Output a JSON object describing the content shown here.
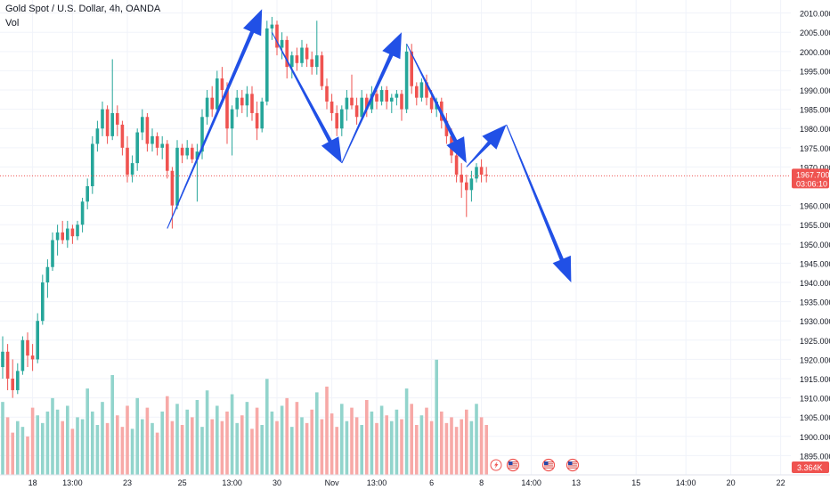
{
  "header": {
    "title": "Gold Spot / U.S. Dollar, 4h, OANDA",
    "volume_label": "Vol"
  },
  "price_axis": {
    "ticks": [
      "2010.000",
      "2005.000",
      "2000.000",
      "1995.000",
      "1990.000",
      "1985.000",
      "1980.000",
      "1975.000",
      "1970.000",
      "1960.000",
      "1955.000",
      "1950.000",
      "1945.000",
      "1940.000",
      "1935.000",
      "1930.000",
      "1925.000",
      "1920.000",
      "1915.000",
      "1910.000",
      "1905.000",
      "1900.000",
      "1895.000"
    ],
    "last_price": "1967.700",
    "countdown": "03:06:10",
    "volume_badge": "3.364K"
  },
  "time_axis": {
    "labels": [
      "18",
      "13:00",
      "23",
      "25",
      "13:00",
      "30",
      "Nov",
      "13:00",
      "6",
      "8",
      "14:00",
      "13",
      "15",
      "14:00",
      "20",
      "22"
    ]
  },
  "colors": {
    "up": "#26a69a",
    "down": "#ef5350",
    "vol_up": "#92d4cc",
    "vol_down": "#f7a9a7",
    "arrow": "#2150e6",
    "grid": "#f0f3fa",
    "axis_text": "#131722"
  },
  "events": {
    "icons": [
      "lightning-icon",
      "us-flag-icon",
      "us-flag-icon",
      "us-flag-icon"
    ]
  },
  "chart_data": {
    "type": "candlestick",
    "symbol": "Gold Spot / U.S. Dollar",
    "timeframe": "4h",
    "source": "OANDA",
    "y_range": [
      1890,
      2012
    ],
    "last_price": 1967.7,
    "candles": [
      {
        "o": 1918,
        "h": 1926,
        "l": 1915,
        "c": 1922
      },
      {
        "o": 1922,
        "h": 1924,
        "l": 1912,
        "c": 1915
      },
      {
        "o": 1915,
        "h": 1920,
        "l": 1910,
        "c": 1912
      },
      {
        "o": 1912,
        "h": 1919,
        "l": 1911,
        "c": 1917
      },
      {
        "o": 1917,
        "h": 1926,
        "l": 1916,
        "c": 1925
      },
      {
        "o": 1925,
        "h": 1927,
        "l": 1918,
        "c": 1921
      },
      {
        "o": 1921,
        "h": 1924,
        "l": 1917,
        "c": 1920
      },
      {
        "o": 1920,
        "h": 1932,
        "l": 1919,
        "c": 1930
      },
      {
        "o": 1930,
        "h": 1942,
        "l": 1929,
        "c": 1940
      },
      {
        "o": 1940,
        "h": 1946,
        "l": 1936,
        "c": 1944
      },
      {
        "o": 1944,
        "h": 1953,
        "l": 1943,
        "c": 1951
      },
      {
        "o": 1951,
        "h": 1955,
        "l": 1947,
        "c": 1953
      },
      {
        "o": 1953,
        "h": 1956,
        "l": 1950,
        "c": 1951
      },
      {
        "o": 1951,
        "h": 1956,
        "l": 1949,
        "c": 1954
      },
      {
        "o": 1954,
        "h": 1955,
        "l": 1950,
        "c": 1952
      },
      {
        "o": 1952,
        "h": 1956,
        "l": 1951,
        "c": 1955
      },
      {
        "o": 1955,
        "h": 1962,
        "l": 1953,
        "c": 1961
      },
      {
        "o": 1961,
        "h": 1967,
        "l": 1959,
        "c": 1965
      },
      {
        "o": 1965,
        "h": 1978,
        "l": 1963,
        "c": 1976
      },
      {
        "o": 1976,
        "h": 1982,
        "l": 1974,
        "c": 1980
      },
      {
        "o": 1980,
        "h": 1987,
        "l": 1978,
        "c": 1985
      },
      {
        "o": 1985,
        "h": 1986,
        "l": 1976,
        "c": 1978
      },
      {
        "o": 1978,
        "h": 1998,
        "l": 1977,
        "c": 1984
      },
      {
        "o": 1984,
        "h": 1986,
        "l": 1978,
        "c": 1981
      },
      {
        "o": 1981,
        "h": 1982,
        "l": 1973,
        "c": 1975
      },
      {
        "o": 1975,
        "h": 1978,
        "l": 1966,
        "c": 1968
      },
      {
        "o": 1968,
        "h": 1973,
        "l": 1966,
        "c": 1971
      },
      {
        "o": 1971,
        "h": 1980,
        "l": 1969,
        "c": 1979
      },
      {
        "o": 1979,
        "h": 1985,
        "l": 1977,
        "c": 1983
      },
      {
        "o": 1983,
        "h": 1984,
        "l": 1974,
        "c": 1976
      },
      {
        "o": 1976,
        "h": 1980,
        "l": 1974,
        "c": 1978
      },
      {
        "o": 1978,
        "h": 1979,
        "l": 1973,
        "c": 1975
      },
      {
        "o": 1975,
        "h": 1978,
        "l": 1972,
        "c": 1976
      },
      {
        "o": 1976,
        "h": 1977,
        "l": 1967,
        "c": 1969
      },
      {
        "o": 1969,
        "h": 1970,
        "l": 1954,
        "c": 1960
      },
      {
        "o": 1960,
        "h": 1977,
        "l": 1959,
        "c": 1975
      },
      {
        "o": 1975,
        "h": 1976,
        "l": 1971,
        "c": 1973
      },
      {
        "o": 1973,
        "h": 1977,
        "l": 1972,
        "c": 1975
      },
      {
        "o": 1975,
        "h": 1976,
        "l": 1971,
        "c": 1972
      },
      {
        "o": 1972,
        "h": 1976,
        "l": 1961,
        "c": 1974
      },
      {
        "o": 1974,
        "h": 1985,
        "l": 1972,
        "c": 1983
      },
      {
        "o": 1983,
        "h": 1990,
        "l": 1981,
        "c": 1988
      },
      {
        "o": 1988,
        "h": 1991,
        "l": 1983,
        "c": 1985
      },
      {
        "o": 1985,
        "h": 1995,
        "l": 1984,
        "c": 1993
      },
      {
        "o": 1993,
        "h": 1996,
        "l": 1988,
        "c": 1990
      },
      {
        "o": 1990,
        "h": 1992,
        "l": 1976,
        "c": 1980
      },
      {
        "o": 1980,
        "h": 1986,
        "l": 1973,
        "c": 1985
      },
      {
        "o": 1985,
        "h": 1990,
        "l": 1983,
        "c": 1988
      },
      {
        "o": 1988,
        "h": 1990,
        "l": 1984,
        "c": 1986
      },
      {
        "o": 1986,
        "h": 1991,
        "l": 1983,
        "c": 1989
      },
      {
        "o": 1989,
        "h": 1991,
        "l": 1982,
        "c": 1984
      },
      {
        "o": 1984,
        "h": 1987,
        "l": 1977,
        "c": 1980
      },
      {
        "o": 1980,
        "h": 1988,
        "l": 1979,
        "c": 1987
      },
      {
        "o": 1987,
        "h": 2008,
        "l": 1986,
        "c": 2006
      },
      {
        "o": 2006,
        "h": 2009,
        "l": 2003,
        "c": 2007
      },
      {
        "o": 2007,
        "h": 2008,
        "l": 1999,
        "c": 2001
      },
      {
        "o": 2001,
        "h": 2005,
        "l": 1998,
        "c": 2003
      },
      {
        "o": 2003,
        "h": 2004,
        "l": 1993,
        "c": 1996
      },
      {
        "o": 1996,
        "h": 2000,
        "l": 1993,
        "c": 1999
      },
      {
        "o": 1999,
        "h": 2001,
        "l": 1995,
        "c": 1997
      },
      {
        "o": 1997,
        "h": 2003,
        "l": 1996,
        "c": 2001
      },
      {
        "o": 2001,
        "h": 2002,
        "l": 1996,
        "c": 1998
      },
      {
        "o": 1998,
        "h": 2000,
        "l": 1994,
        "c": 1996
      },
      {
        "o": 1996,
        "h": 2008,
        "l": 1994,
        "c": 1999
      },
      {
        "o": 1999,
        "h": 2000,
        "l": 1990,
        "c": 1991
      },
      {
        "o": 1991,
        "h": 1993,
        "l": 1985,
        "c": 1987
      },
      {
        "o": 1987,
        "h": 1989,
        "l": 1982,
        "c": 1984
      },
      {
        "o": 1984,
        "h": 1986,
        "l": 1978,
        "c": 1980
      },
      {
        "o": 1980,
        "h": 1986,
        "l": 1978,
        "c": 1985
      },
      {
        "o": 1985,
        "h": 1990,
        "l": 1982,
        "c": 1988
      },
      {
        "o": 1988,
        "h": 1994,
        "l": 1985,
        "c": 1986
      },
      {
        "o": 1986,
        "h": 1988,
        "l": 1981,
        "c": 1983
      },
      {
        "o": 1983,
        "h": 1990,
        "l": 1982,
        "c": 1988
      },
      {
        "o": 1988,
        "h": 1989,
        "l": 1983,
        "c": 1985
      },
      {
        "o": 1985,
        "h": 1991,
        "l": 1984,
        "c": 1989
      },
      {
        "o": 1989,
        "h": 1990,
        "l": 1985,
        "c": 1987
      },
      {
        "o": 1987,
        "h": 1991,
        "l": 1986,
        "c": 1990
      },
      {
        "o": 1990,
        "h": 1991,
        "l": 1985,
        "c": 1987
      },
      {
        "o": 1987,
        "h": 1989,
        "l": 1984,
        "c": 1988
      },
      {
        "o": 1988,
        "h": 1990,
        "l": 1986,
        "c": 1989
      },
      {
        "o": 1989,
        "h": 1990,
        "l": 1982,
        "c": 1985
      },
      {
        "o": 1985,
        "h": 2002,
        "l": 1984,
        "c": 2000
      },
      {
        "o": 2000,
        "h": 2002,
        "l": 1989,
        "c": 1991
      },
      {
        "o": 1991,
        "h": 1992,
        "l": 1986,
        "c": 1988
      },
      {
        "o": 1988,
        "h": 1993,
        "l": 1987,
        "c": 1992
      },
      {
        "o": 1992,
        "h": 1994,
        "l": 1986,
        "c": 1988
      },
      {
        "o": 1988,
        "h": 1990,
        "l": 1984,
        "c": 1985
      },
      {
        "o": 1985,
        "h": 1988,
        "l": 1983,
        "c": 1987
      },
      {
        "o": 1987,
        "h": 1988,
        "l": 1980,
        "c": 1982
      },
      {
        "o": 1982,
        "h": 1984,
        "l": 1976,
        "c": 1978
      },
      {
        "o": 1978,
        "h": 1980,
        "l": 1971,
        "c": 1973
      },
      {
        "o": 1973,
        "h": 1975,
        "l": 1966,
        "c": 1968
      },
      {
        "o": 1968,
        "h": 1971,
        "l": 1962,
        "c": 1966
      },
      {
        "o": 1966,
        "h": 1968,
        "l": 1957,
        "c": 1964
      },
      {
        "o": 1964,
        "h": 1969,
        "l": 1961,
        "c": 1967
      },
      {
        "o": 1967,
        "h": 1971,
        "l": 1966,
        "c": 1970
      },
      {
        "o": 1970,
        "h": 1972,
        "l": 1966,
        "c": 1968
      },
      {
        "o": 1968,
        "h": 1970,
        "l": 1966,
        "c": 1967.7
      }
    ],
    "volume": [
      38,
      30,
      22,
      28,
      25,
      20,
      35,
      31,
      27,
      33,
      40,
      34,
      28,
      36,
      24,
      30,
      29,
      45,
      33,
      26,
      38,
      27,
      52,
      31,
      25,
      36,
      24,
      40,
      29,
      35,
      27,
      22,
      33,
      41,
      28,
      37,
      26,
      34,
      30,
      39,
      25,
      44,
      29,
      36,
      28,
      33,
      42,
      27,
      31,
      38,
      24,
      35,
      26,
      50,
      33,
      28,
      36,
      40,
      25,
      38,
      30,
      27,
      34,
      43,
      29,
      46,
      32,
      25,
      37,
      28,
      35,
      30,
      26,
      39,
      33,
      27,
      36,
      31,
      28,
      34,
      29,
      45,
      37,
      26,
      31,
      35,
      28,
      60,
      33,
      27,
      30,
      25,
      29,
      34,
      28,
      37,
      30,
      26
    ]
  },
  "annotations": {
    "arrows": [
      {
        "from": {
          "i": 33,
          "p": 1954
        },
        "to": {
          "i": 52,
          "p": 2011
        }
      },
      {
        "from": {
          "i": 54,
          "p": 2005
        },
        "to": {
          "i": 68,
          "p": 1971
        }
      },
      {
        "from": {
          "i": 68,
          "p": 1971
        },
        "to": {
          "i": 80,
          "p": 2005
        }
      },
      {
        "from": {
          "i": 81,
          "p": 2002
        },
        "to": {
          "i": 93,
          "p": 1971
        }
      },
      {
        "from": {
          "i": 93,
          "p": 1970
        },
        "to": {
          "i": 101,
          "p": 1981
        }
      },
      {
        "from": {
          "i": 101,
          "p": 1981
        },
        "to": {
          "i": 114,
          "p": 1940
        }
      }
    ]
  }
}
